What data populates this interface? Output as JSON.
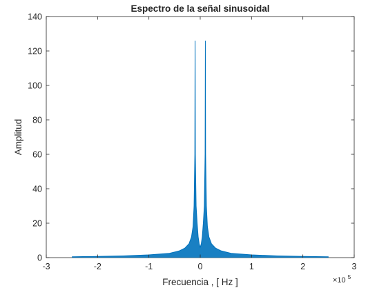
{
  "chart_data": {
    "type": "line",
    "title": "Espectro de la señal sinusoidal",
    "xlabel": "Frecuencia , [ Hz ]",
    "ylabel": "Amplitud",
    "x_multiplier_label": "×10",
    "x_multiplier_exponent": "5",
    "xlim": [
      -3,
      3
    ],
    "ylim": [
      0,
      140
    ],
    "x_unit_scale": 100000,
    "xticks": [
      -3,
      -2,
      -1,
      0,
      1,
      2,
      3
    ],
    "yticks": [
      0,
      20,
      40,
      60,
      80,
      100,
      120,
      140
    ],
    "x_tick_labels": [
      "-3",
      "-2",
      "-1",
      "0",
      "1",
      "2",
      "3"
    ],
    "y_tick_labels": [
      "0",
      "20",
      "40",
      "60",
      "80",
      "100",
      "120",
      "140"
    ],
    "grid": false,
    "legend": "none",
    "series": [
      {
        "color": "#0072BD",
        "x": [
          -2.5,
          -2.0,
          -1.5,
          -1.0,
          -0.6,
          -0.4,
          -0.3,
          -0.22,
          -0.17,
          -0.14,
          -0.12,
          -0.105,
          -0.1,
          -0.095,
          -0.08,
          -0.06,
          -0.04,
          -0.02,
          0.0,
          0.02,
          0.04,
          0.06,
          0.08,
          0.095,
          0.1,
          0.105,
          0.12,
          0.14,
          0.17,
          0.22,
          0.3,
          0.4,
          0.6,
          1.0,
          1.5,
          2.0,
          2.5
        ],
        "y": [
          0.5,
          0.7,
          1.0,
          1.6,
          2.5,
          4.0,
          5.5,
          8.0,
          12.0,
          18.0,
          30.0,
          60.0,
          126.0,
          60.0,
          30.0,
          20.0,
          12.0,
          8.0,
          6.0,
          8.0,
          12.0,
          20.0,
          30.0,
          60.0,
          126.0,
          60.0,
          30.0,
          18.0,
          12.0,
          8.0,
          5.5,
          4.0,
          2.5,
          1.6,
          1.0,
          0.7,
          0.5
        ]
      }
    ]
  }
}
